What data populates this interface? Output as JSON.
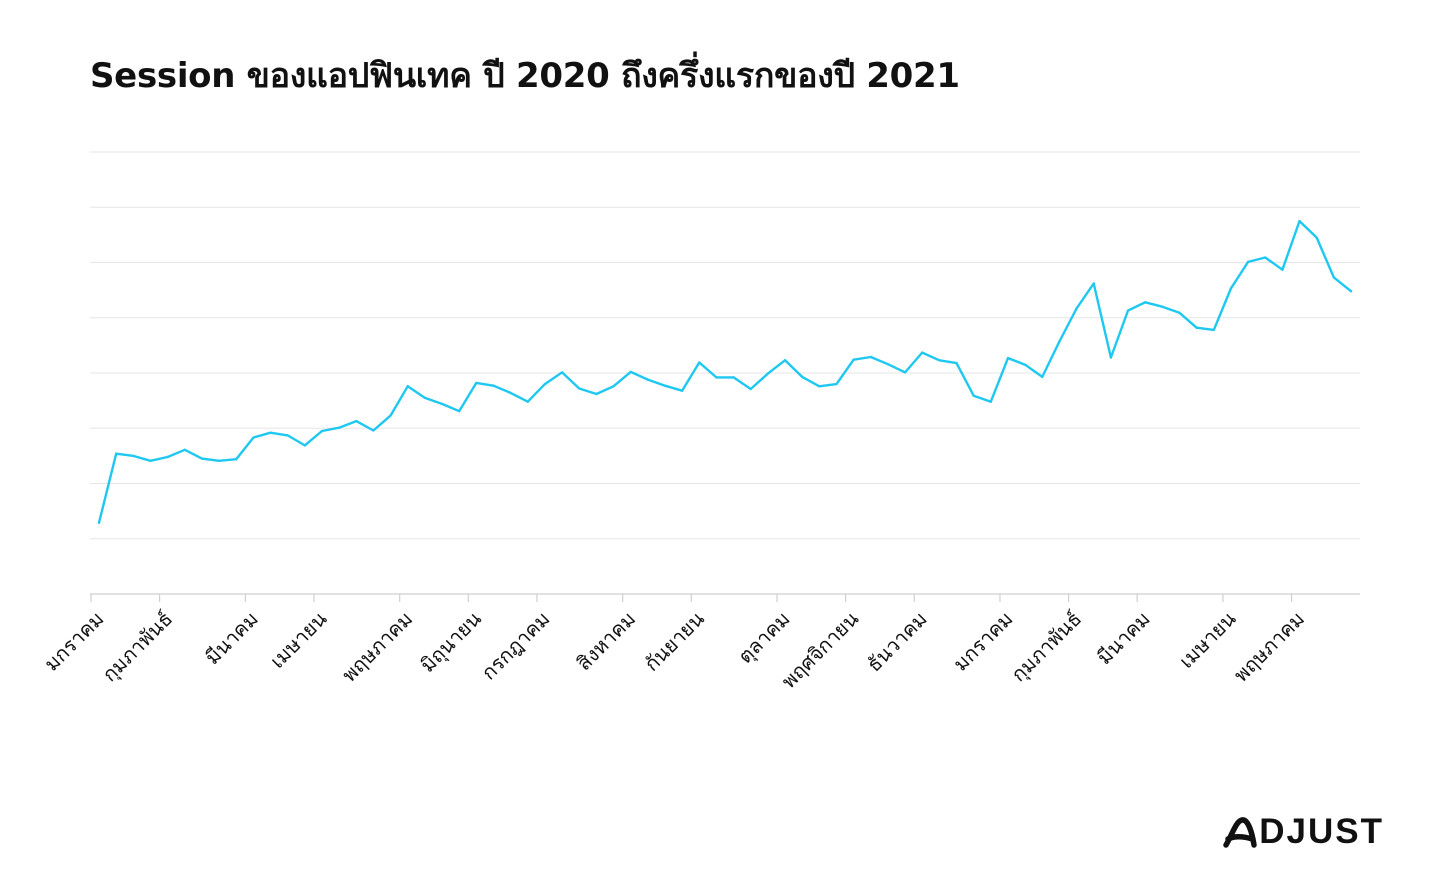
{
  "page": {
    "title": "Session ของแอปฟินเทค ปี 2020 ถึงครึ่งแรกของปี 2021",
    "brand": "DJUST",
    "brand_mark_icon": "adjust-a-logo-icon"
  },
  "colors": {
    "line": "#1ec8f0",
    "grid": "#e6e6e6",
    "axis": "#cfcfcf",
    "text": "#111111"
  },
  "chart_data": {
    "type": "line",
    "title": "Session ของแอปฟินเทค ปี 2020 ถึงครึ่งแรกของปี 2021",
    "xlabel": "",
    "ylabel": "",
    "y_tick_labels_shown": false,
    "grid": "horizontal",
    "ylim": [
      0,
      8
    ],
    "yticks": [
      0,
      1,
      2,
      3,
      4,
      5,
      6,
      7,
      8
    ],
    "x_tick_labels": [
      {
        "i": 0,
        "label": "มกราคม"
      },
      {
        "i": 4,
        "label": "กุมภาพันธ์"
      },
      {
        "i": 9,
        "label": "มีนาคม"
      },
      {
        "i": 13,
        "label": "เมษายน"
      },
      {
        "i": 18,
        "label": "พฤษภาคม"
      },
      {
        "i": 22,
        "label": "มิถุนายน"
      },
      {
        "i": 26,
        "label": "กรกฎาคม"
      },
      {
        "i": 31,
        "label": "สิงหาคม"
      },
      {
        "i": 35,
        "label": "กันยายน"
      },
      {
        "i": 40,
        "label": "ตุลาคม"
      },
      {
        "i": 44,
        "label": "พฤศจิกายน"
      },
      {
        "i": 48,
        "label": "ธันวาคม"
      },
      {
        "i": 53,
        "label": "มกราคม"
      },
      {
        "i": 57,
        "label": "กุมภาพันธ์"
      },
      {
        "i": 61,
        "label": "มีนาคม"
      },
      {
        "i": 66,
        "label": "เมษายน"
      },
      {
        "i": 70,
        "label": "พฤษภาคม"
      }
    ],
    "series": [
      {
        "values": [
          1.29,
          2.54,
          2.5,
          2.41,
          2.48,
          2.61,
          2.45,
          2.41,
          2.44,
          2.83,
          2.92,
          2.87,
          2.69,
          2.95,
          3.01,
          3.13,
          2.96,
          3.23,
          3.76,
          3.55,
          3.44,
          3.31,
          3.82,
          3.77,
          3.64,
          3.48,
          3.8,
          4.01,
          3.72,
          3.62,
          3.76,
          4.02,
          3.88,
          3.77,
          3.68,
          4.19,
          3.92,
          3.92,
          3.71,
          3.99,
          4.23,
          3.93,
          3.76,
          3.8,
          4.24,
          4.29,
          4.16,
          4.01,
          4.37,
          4.23,
          4.18,
          3.59,
          3.48,
          4.27,
          4.15,
          3.93,
          4.57,
          5.17,
          5.62,
          4.28,
          5.13,
          5.28,
          5.2,
          5.09,
          4.82,
          4.78,
          5.53,
          6.01,
          6.09,
          5.87,
          6.75,
          6.45,
          5.73,
          5.48
        ]
      }
    ]
  }
}
